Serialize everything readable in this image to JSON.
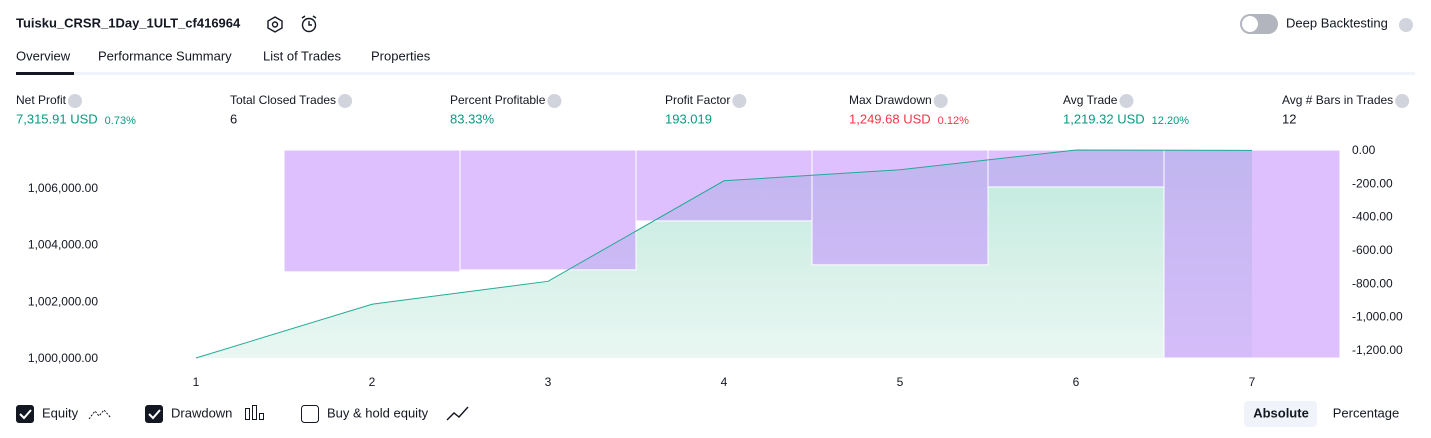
{
  "header": {
    "title": "Tuisku_CRSR_1Day_1ULT_cf416964",
    "deep_backtesting": "Deep Backtesting"
  },
  "tabs": [
    "Overview",
    "Performance Summary",
    "List of Trades",
    "Properties"
  ],
  "metrics": [
    {
      "label": "Net Profit",
      "value": "7,315.91 USD",
      "percent": "0.73%",
      "color": "#089981"
    },
    {
      "label": "Total Closed Trades",
      "value": "6",
      "color": "#131722"
    },
    {
      "label": "Percent Profitable",
      "value": "83.33%",
      "color": "#089981"
    },
    {
      "label": "Profit Factor",
      "value": "193.019",
      "color": "#089981"
    },
    {
      "label": "Max Drawdown",
      "value": "1,249.68 USD",
      "percent": "0.12%",
      "color": "#f23645"
    },
    {
      "label": "Avg Trade",
      "value": "1,219.32 USD",
      "percent": "12.20%",
      "color": "#089981"
    },
    {
      "label": "Avg # Bars in Trades",
      "value": "12",
      "color": "#131722"
    }
  ],
  "chart_data": {
    "type": "combo",
    "categories": [
      "1",
      "2",
      "3",
      "4",
      "5",
      "6",
      "7"
    ],
    "series": [
      {
        "name": "Equity",
        "type": "area",
        "color": "#22ab94",
        "values": [
          1000000,
          1001895,
          1002702,
          1006246,
          1006632,
          1007330,
          1007316
        ]
      },
      {
        "name": "Drawdown",
        "type": "bar",
        "axis": "y2",
        "color": "#c38cff",
        "values": [
          0,
          -732,
          -720,
          -426,
          -690,
          -222,
          -1249.68
        ]
      }
    ],
    "ylim": [
      1000000,
      1007330
    ],
    "yticks": [
      {
        "value": 1000000,
        "label": "1,000,000.00"
      },
      {
        "value": 1002000,
        "label": "1,002,000.00"
      },
      {
        "value": 1004000,
        "label": "1,004,000.00"
      },
      {
        "value": 1006000,
        "label": "1,006,000.00"
      }
    ],
    "y2lim": [
      -1249.68,
      0
    ],
    "y2ticks": [
      {
        "value": 0,
        "label": "0.00"
      },
      {
        "value": -200,
        "label": "-200.00"
      },
      {
        "value": -400,
        "label": "-400.00"
      },
      {
        "value": -600,
        "label": "-600.00"
      },
      {
        "value": -800,
        "label": "-800.00"
      },
      {
        "value": -1000,
        "label": "-1,000.00"
      },
      {
        "value": -1200,
        "label": "-1,200.00"
      }
    ]
  },
  "buy_hold_label": "Buy & hold equity",
  "modes": [
    "Absolute",
    "Percentage"
  ]
}
